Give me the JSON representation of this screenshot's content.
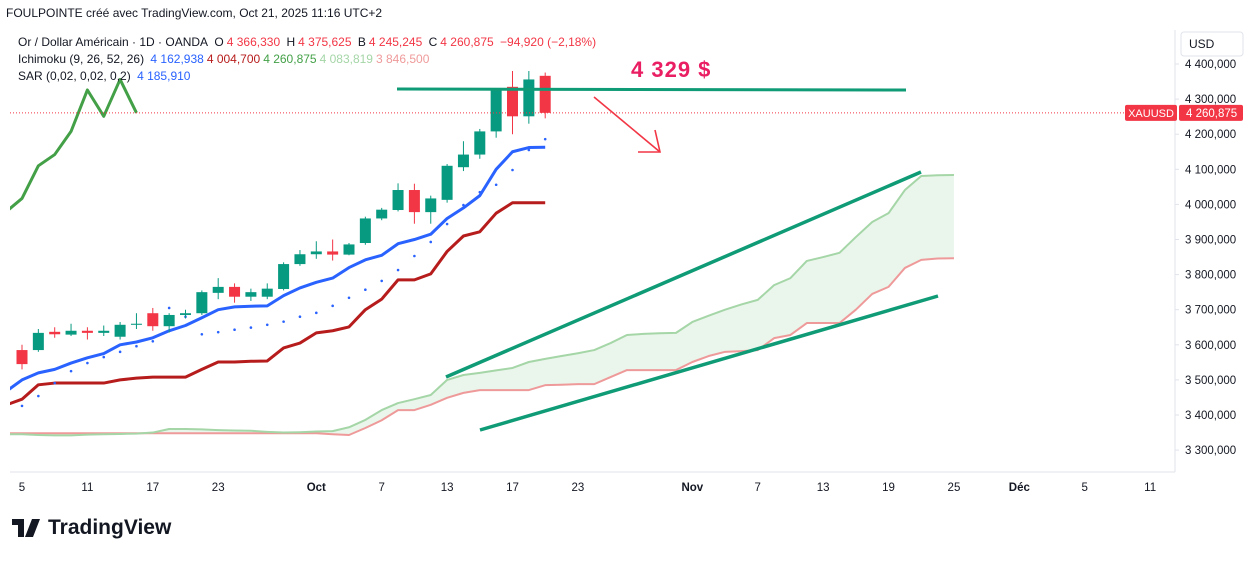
{
  "header": {
    "caption": "FOULPOINTE créé avec TradingView.com, Oct 21, 2025 11:16 UTC+2"
  },
  "legend": {
    "main": {
      "symbol": "Or / Dollar Américain · 1D · OANDA",
      "o": "O",
      "open": "4 366,330",
      "h": "H",
      "high": "4 375,625",
      "b": "B",
      "low": "4 245,245",
      "c": "C",
      "close": "4 260,875",
      "change": "−94,920 (−2,18%)"
    },
    "ichimoku": {
      "title": "Ichimoku (9, 26, 52, 26)",
      "values": [
        "4 162,938",
        "4 004,700",
        "4 260,875",
        "4 083,819",
        "3 846,500"
      ]
    },
    "sar": {
      "title": "SAR (0,02, 0,02, 0,2)",
      "value": "4 185,910"
    }
  },
  "chart_data": {
    "type": "candlestick",
    "categories": [
      null,
      "5",
      null,
      null,
      null,
      "11",
      null,
      null,
      null,
      "17",
      null,
      null,
      null,
      "23",
      null,
      null,
      null,
      null,
      null,
      "Oct",
      null,
      null,
      null,
      "7",
      null,
      null,
      null,
      "13",
      null,
      null,
      null,
      "17",
      null,
      null,
      null,
      "23",
      null,
      null,
      null,
      null,
      null,
      null,
      "Nov",
      null,
      null,
      null,
      "7",
      null,
      null,
      null,
      "13",
      null,
      null,
      null,
      "19",
      null,
      null,
      null,
      "25",
      null,
      null,
      null,
      "Déc",
      null,
      null,
      null,
      "5",
      null,
      null,
      null,
      "11"
    ],
    "open": [
      null,
      3585,
      3585,
      3637,
      3629,
      3640,
      3634,
      3623,
      3657,
      3690,
      3653,
      3685,
      3690,
      3748,
      3765,
      3737,
      3737,
      3759,
      3830,
      3858,
      3866,
      3857,
      3890,
      3960,
      3984,
      4041,
      3978,
      4013,
      4106,
      4142,
      4208,
      4335,
      4251,
      4366.33,
      null,
      null,
      null,
      null,
      null,
      null,
      null,
      null,
      null,
      null,
      null,
      null,
      null,
      null,
      null,
      null,
      null,
      null,
      null,
      null,
      null,
      null,
      null,
      null,
      null,
      null,
      null,
      null,
      null,
      null,
      null,
      null,
      null,
      null,
      null,
      null,
      null
    ],
    "high": [
      null,
      3600,
      3645,
      3650,
      3660,
      3650,
      3655,
      3665,
      3690,
      3705,
      3690,
      3700,
      3755,
      3790,
      3775,
      3760,
      3775,
      3835,
      3870,
      3895,
      3900,
      3890,
      3965,
      3990,
      4060,
      4059,
      4025,
      4115,
      4180,
      4215,
      4330,
      4380,
      4380,
      4375.625,
      null,
      null,
      null,
      null,
      null,
      null,
      null,
      null,
      null,
      null,
      null,
      null,
      null,
      null,
      null,
      null,
      null,
      null,
      null,
      null,
      null,
      null,
      null,
      null,
      null,
      null,
      null,
      null,
      null,
      null,
      null,
      null,
      null,
      null,
      null,
      null,
      null
    ],
    "low": [
      null,
      3530,
      3580,
      3620,
      3625,
      3615,
      3625,
      3615,
      3645,
      3640,
      3635,
      3675,
      3685,
      3730,
      3720,
      3725,
      3730,
      3755,
      3825,
      3845,
      3840,
      3855,
      3885,
      3955,
      3980,
      3945,
      3945,
      4005,
      4095,
      4130,
      4190,
      4200,
      4230,
      4245.245,
      null,
      null,
      null,
      null,
      null,
      null,
      null,
      null,
      null,
      null,
      null,
      null,
      null,
      null,
      null,
      null,
      null,
      null,
      null,
      null,
      null,
      null,
      null,
      null,
      null,
      null,
      null,
      null,
      null,
      null,
      null,
      null,
      null,
      null,
      null,
      null,
      null
    ],
    "close": [
      null,
      3545,
      3634,
      3630,
      3640,
      3634,
      3640,
      3657,
      3660,
      3653,
      3685,
      3690,
      3750,
      3765,
      3737,
      3750,
      3760,
      3830,
      3858,
      3866,
      3857,
      3886,
      3960,
      3985,
      4041,
      3978,
      4017,
      4110,
      4142,
      4208,
      4326,
      4251,
      4356,
      4260.875,
      null,
      null,
      null,
      null,
      null,
      null,
      null,
      null,
      null,
      null,
      null,
      null,
      null,
      null,
      null,
      null,
      null,
      null,
      null,
      null,
      null,
      null,
      null,
      null,
      null,
      null,
      null,
      null,
      null,
      null,
      null,
      null,
      null,
      null,
      null,
      null,
      null
    ],
    "up_color": "#089981",
    "down_color": "#f23645",
    "series": [
      {
        "style": "line",
        "color": "#2962ff",
        "values": [
          3466,
          3500,
          3520,
          3530,
          3548,
          3563,
          3575,
          3600,
          3608,
          3620,
          3640,
          3655,
          3677,
          3700,
          3708,
          3710,
          3711,
          3740,
          3762,
          3778,
          3790,
          3820,
          3842,
          3855,
          3888,
          3900,
          3915,
          3960,
          3990,
          4025,
          4100,
          4150,
          4162,
          4162.938,
          null,
          null,
          null,
          null,
          null,
          null,
          null,
          null,
          null,
          null,
          null,
          null,
          null,
          null,
          null,
          null,
          null,
          null,
          null,
          null,
          null,
          null,
          null,
          null,
          null,
          null,
          null,
          null,
          null,
          null,
          null,
          null,
          null,
          null,
          null,
          null,
          null
        ]
      },
      {
        "style": "line",
        "color": "#b71c1c",
        "values": [
          3428,
          3445,
          3486,
          3491,
          3491,
          3491,
          3491,
          3500,
          3505,
          3508,
          3508,
          3508,
          3530,
          3551,
          3551,
          3553,
          3554,
          3591,
          3605,
          3634,
          3640,
          3651,
          3700,
          3730,
          3785,
          3785,
          3802,
          3866,
          3910,
          3922,
          3975,
          4004.7,
          4004.7,
          4004.7,
          null,
          null,
          null,
          null,
          null,
          null,
          null,
          null,
          null,
          null,
          null,
          null,
          null,
          null,
          null,
          null,
          null,
          null,
          null,
          null,
          null,
          null,
          null,
          null,
          null,
          null,
          null,
          null,
          null,
          null,
          null,
          null,
          null,
          null,
          null,
          null,
          null
        ]
      },
      {
        "style": "line",
        "color": "#43a047",
        "values": [
          3978,
          4017,
          4110,
          4142,
          4208,
          4326,
          4251,
          4356,
          4260.875,
          null,
          null,
          null,
          null,
          null,
          null,
          null,
          null,
          null,
          null,
          null,
          null,
          null,
          null,
          null,
          null,
          null,
          null,
          null,
          null,
          null,
          null,
          null,
          null,
          null,
          null,
          null,
          null,
          null,
          null,
          null,
          null,
          null,
          null,
          null,
          null,
          null,
          null,
          null,
          null,
          null,
          null,
          null,
          null,
          null,
          null,
          null,
          null,
          null,
          null,
          null,
          null,
          null,
          null,
          null,
          null,
          null,
          null,
          null,
          null,
          null,
          null
        ]
      },
      {
        "style": "line",
        "color": "#a5d6a7",
        "values": [
          3345,
          3345,
          3343,
          3342,
          3342,
          3344,
          3345,
          3346,
          3347,
          3350,
          3360,
          3360,
          3359,
          3357,
          3356,
          3355,
          3352,
          3350,
          3351,
          3353,
          3354,
          3365,
          3386,
          3414,
          3434,
          3445,
          3457,
          3500,
          3514,
          3520,
          3527,
          3534,
          3551,
          3560,
          3568,
          3576,
          3585,
          3605,
          3628,
          3631,
          3633,
          3634,
          3665,
          3683,
          3700,
          3715,
          3728,
          3770,
          3790,
          3839,
          3850,
          3862,
          3907,
          3950,
          3975,
          4041,
          4081,
          4083,
          4083.819,
          null,
          null,
          null,
          null,
          null,
          null,
          null,
          null,
          null,
          null,
          null,
          null
        ]
      },
      {
        "style": "line",
        "color": "#ef9a9a",
        "values": [
          3348,
          3348,
          3348,
          3348,
          3348,
          3348,
          3348,
          3348,
          3348,
          3348,
          3348,
          3348,
          3348,
          3348,
          3348,
          3348,
          3348,
          3348,
          3348,
          3348,
          3345,
          3343,
          3363,
          3385,
          3414,
          3414,
          3429,
          3449,
          3463,
          3471,
          3471,
          3471,
          3471,
          3485,
          3486,
          3488,
          3488,
          3508,
          3528,
          3528,
          3528,
          3528,
          3551,
          3568,
          3580,
          3582,
          3585,
          3619,
          3628,
          3662,
          3662,
          3662,
          3700,
          3745,
          3765,
          3819,
          3842,
          3846,
          3846.5,
          null,
          null,
          null,
          null,
          null,
          null,
          null,
          null,
          null,
          null,
          null,
          null
        ]
      },
      {
        "style": "dots",
        "color": "#2962ff",
        "values": [
          3420,
          3426,
          3454,
          3491,
          3525,
          3548,
          3565,
          3580,
          3596,
          3610,
          3705,
          3680,
          3630,
          3636,
          3643,
          3649,
          3657,
          3666,
          3680,
          3691,
          3711,
          3734,
          3757,
          3782,
          3813,
          3853,
          3893,
          3944,
          3998,
          4035,
          4056,
          4098,
          4155,
          4185.91,
          null,
          null,
          null,
          null,
          null,
          null,
          null,
          null,
          null,
          null,
          null,
          null,
          null,
          null,
          null,
          null,
          null,
          null,
          null,
          null,
          null,
          null,
          null,
          null,
          null,
          null,
          null,
          null,
          null,
          null,
          null,
          null,
          null,
          null,
          null,
          null,
          null
        ]
      }
    ],
    "cloud_color": "#e8f5e9",
    "ylim": [
      3243.3,
      4496.9
    ],
    "yticks": [
      {
        "value": 3300,
        "label": "3 300,000"
      },
      {
        "value": 3400,
        "label": "3 400,000"
      },
      {
        "value": 3500,
        "label": "3 500,000"
      },
      {
        "value": 3600,
        "label": "3 600,000"
      },
      {
        "value": 3700,
        "label": "3 700,000"
      },
      {
        "value": 3800,
        "label": "3 800,000"
      },
      {
        "value": 3900,
        "label": "3 900,000"
      },
      {
        "value": 4000,
        "label": "4 000,000"
      },
      {
        "value": 4100,
        "label": "4 100,000"
      },
      {
        "value": 4200,
        "label": "4 200,000"
      },
      {
        "value": 4300,
        "label": "4 300,000"
      },
      {
        "value": 4400,
        "label": "4 400,000"
      }
    ],
    "currency": "USD",
    "price_tag": {
      "symbol": "XAUUSD",
      "price": "4 260,875"
    },
    "annotation": "4 329 $"
  },
  "footer": {
    "brand": "TradingView"
  }
}
